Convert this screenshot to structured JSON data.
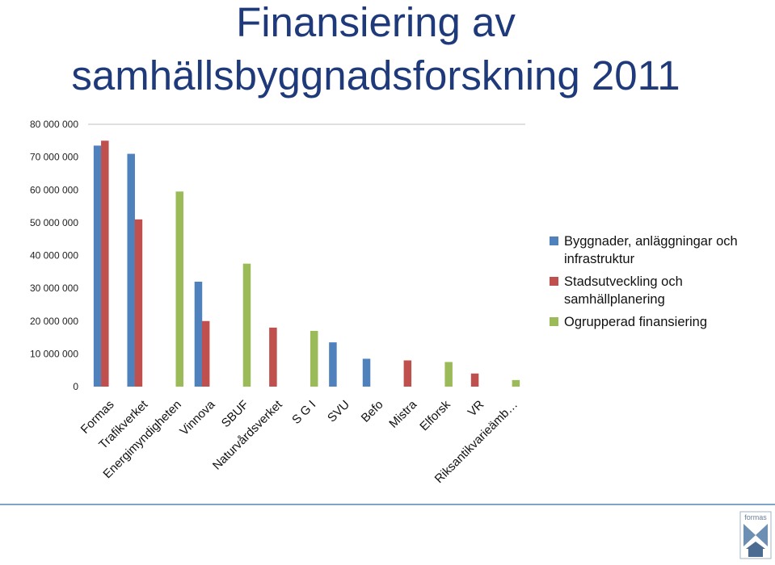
{
  "title": {
    "line1": "Finansiering av",
    "line2": "samhällsbyggnadsforskning 2011"
  },
  "logo_text": "formas",
  "chart_data": {
    "type": "bar",
    "title": "Finansiering av samhällsbyggnadsforskning 2011",
    "xlabel": "",
    "ylabel": "",
    "ylim": [
      0,
      80000000
    ],
    "grid": false,
    "legend_position": "right",
    "yticks": [
      "0",
      "10 000 000",
      "20 000 000",
      "30 000 000",
      "40 000 000",
      "50 000 000",
      "60 000 000",
      "70 000 000",
      "80 000 000"
    ],
    "categories": [
      "Formas",
      "Trafikverket",
      "Energimyndigheten",
      "Vinnova",
      "SBUF",
      "Naturvårdsverket",
      "S G I",
      "SVU",
      "Befo",
      "Mistra",
      "Elforsk",
      "VR",
      "Riksantikvarieämb…"
    ],
    "series": [
      {
        "name": "Byggnader, anläggningar och infrastruktur",
        "color": "#4f81bd",
        "values": [
          73500000,
          71000000,
          0,
          32000000,
          0,
          0,
          0,
          13500000,
          8500000,
          0,
          0,
          0,
          0
        ]
      },
      {
        "name": "Stadsutveckling och samhällplanering",
        "color": "#c0504d",
        "values": [
          75000000,
          51000000,
          0,
          20000000,
          0,
          18000000,
          0,
          0,
          0,
          8000000,
          0,
          4000000,
          0
        ]
      },
      {
        "name": "Ogrupperad finansiering",
        "color": "#9bbb59",
        "values": [
          0,
          0,
          59500000,
          0,
          37500000,
          0,
          17000000,
          0,
          0,
          0,
          7500000,
          0,
          2000000
        ]
      }
    ]
  }
}
